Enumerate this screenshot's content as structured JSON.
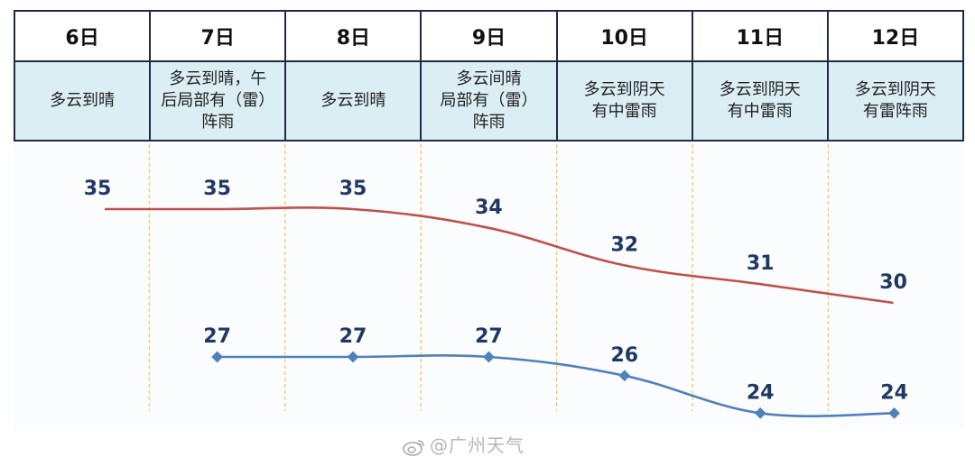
{
  "days": [
    "6日",
    "7日",
    "8日",
    "9日",
    "10日",
    "11日",
    "12日"
  ],
  "weather": [
    "多云到晴",
    "多云到晴，午\n后局部有（雷）\n阵雨",
    "多云到晴",
    "多云间晴\n局部有（雷）\n阵雨",
    "多云到阴天\n有中雷雨",
    "多云到阴天\n有中雷雨",
    "多云到阴天\n有雷阵雨"
  ],
  "chart_data": {
    "type": "line",
    "categories": [
      "6日",
      "7日",
      "8日",
      "9日",
      "10日",
      "11日",
      "12日"
    ],
    "series": [
      {
        "name": "high",
        "color": "#c0504d",
        "values": [
          35,
          35,
          35,
          34,
          32,
          31,
          30
        ],
        "markers": false
      },
      {
        "name": "low",
        "color": "#4f81bd",
        "values": [
          null,
          27,
          27,
          27,
          26,
          24,
          24
        ],
        "markers": true
      }
    ],
    "title": "",
    "xlabel": "",
    "ylabel": ""
  },
  "watermark": "@广州天气"
}
